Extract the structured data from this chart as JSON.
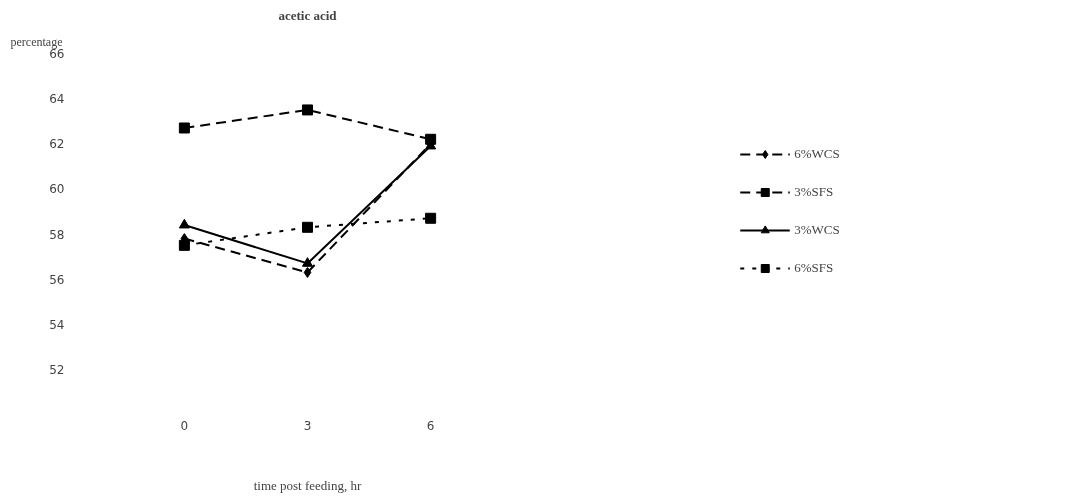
{
  "chart_data": {
    "type": "line",
    "title": "acetic acid",
    "xlabel": "time post feeding, hr",
    "ylabel": "percentage",
    "categories": [
      "0",
      "3",
      "6"
    ],
    "series": [
      {
        "name": "6%WCS",
        "color": "#000000",
        "values": [
          57.8,
          56.3,
          62.0
        ],
        "marker": "diamond",
        "line_style": "dashed"
      },
      {
        "name": "3%SFS",
        "color": "#000000",
        "values": [
          62.7,
          63.5,
          62.2
        ],
        "marker": "square",
        "line_style": "dashed"
      },
      {
        "name": "3%WCS",
        "color": "#000000",
        "values": [
          58.4,
          56.7,
          61.9
        ],
        "marker": "triangle",
        "line_style": "solid"
      },
      {
        "name": "6%SFS",
        "color": "#000000",
        "values": [
          57.5,
          58.3,
          58.7
        ],
        "marker": "square",
        "line_style": "dotted"
      }
    ],
    "ylim": [
      52,
      66
    ],
    "yticks": [
      52,
      54,
      56,
      58,
      60,
      62,
      64,
      66
    ],
    "grid": false,
    "legend": "right"
  }
}
